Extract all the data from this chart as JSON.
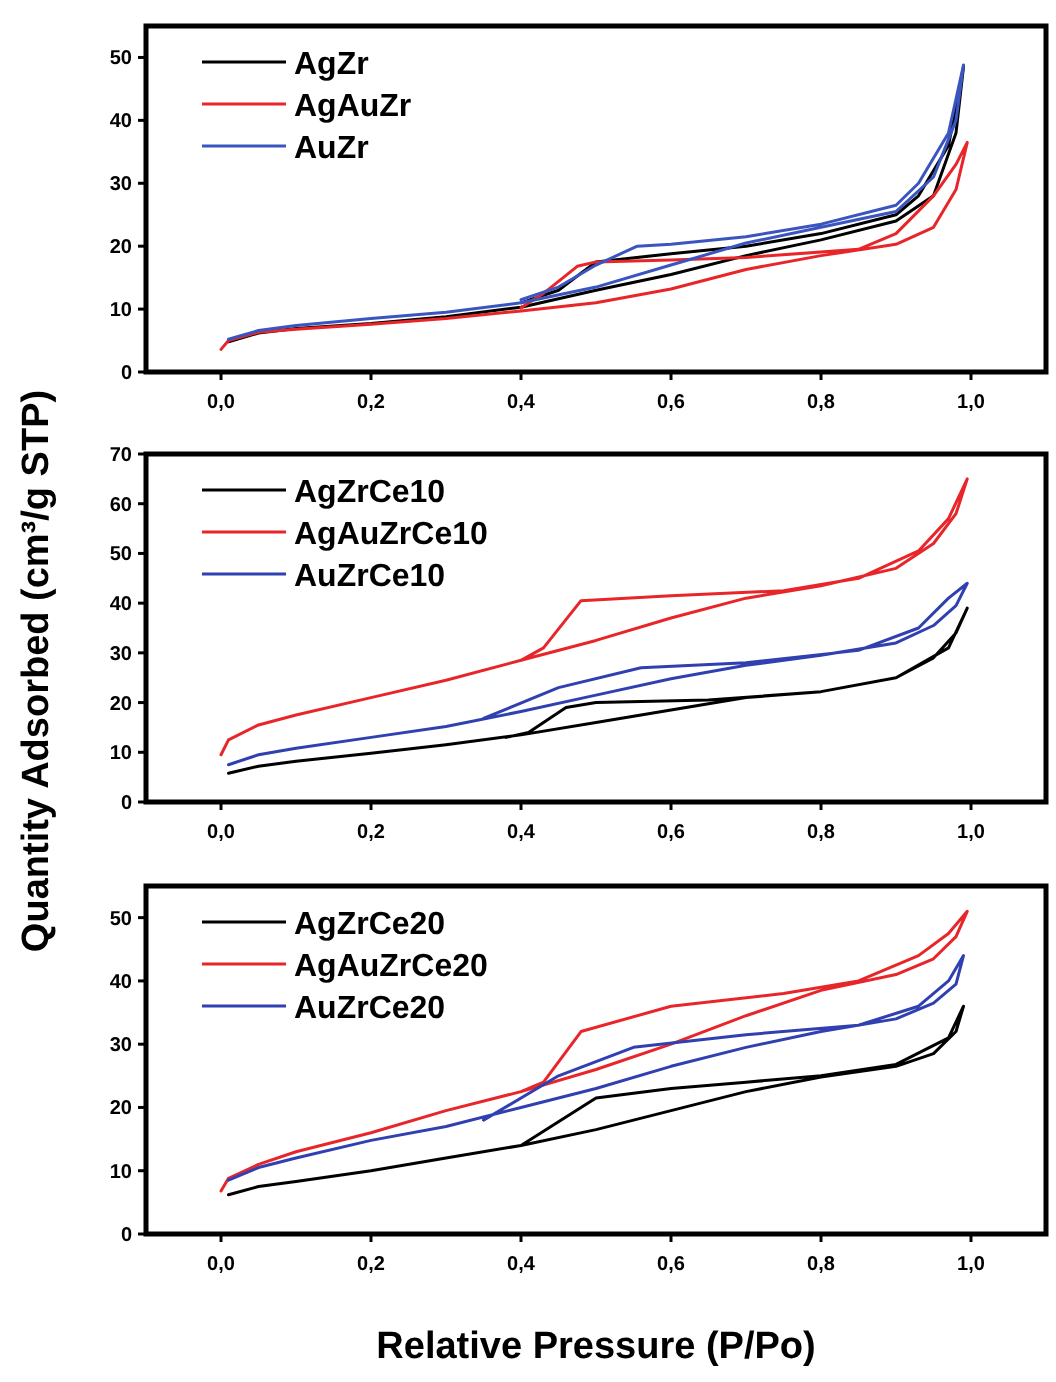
{
  "chart_data": [
    {
      "type": "line",
      "legend": "top left",
      "line_style": "solid",
      "xlim": [
        -0.1,
        1.1
      ],
      "xticks": [
        {
          "value": 0,
          "label": "0,0"
        },
        {
          "value": 0.2,
          "label": "0,2"
        },
        {
          "value": 0.4,
          "label": "0,4"
        },
        {
          "value": 0.6,
          "label": "0,6"
        },
        {
          "value": 0.8,
          "label": "0,8"
        },
        {
          "value": 1,
          "label": "1,0"
        }
      ],
      "ylim": [
        0,
        55
      ],
      "yticks": [
        0,
        10,
        20,
        30,
        40,
        50
      ],
      "series": [
        {
          "name": "AgZr",
          "color": "#000000",
          "x": [
            0.01,
            0.05,
            0.1,
            0.2,
            0.3,
            0.4,
            0.5,
            0.6,
            0.7,
            0.8,
            0.9,
            0.95,
            0.98,
            0.99,
            0.97,
            0.93,
            0.9,
            0.8,
            0.7,
            0.6,
            0.5,
            0.45,
            0.4
          ],
          "values": [
            4.8,
            6.2,
            6.9,
            7.7,
            8.8,
            10.3,
            13,
            15.5,
            18.5,
            21,
            24,
            28,
            38,
            48.5,
            36,
            28,
            25,
            22,
            20,
            18.8,
            17.5,
            13,
            11
          ]
        },
        {
          "name": "AgAuZr",
          "color": "#e8262a",
          "x": [
            0,
            0.01,
            0.05,
            0.1,
            0.2,
            0.3,
            0.4,
            0.5,
            0.6,
            0.7,
            0.8,
            0.9,
            0.95,
            0.98,
            0.995,
            0.98,
            0.95,
            0.9,
            0.85,
            0.7,
            0.6,
            0.5,
            0.475,
            0.43,
            0.4
          ],
          "values": [
            3.6,
            5,
            6.3,
            6.8,
            7.6,
            8.5,
            9.7,
            11,
            13.2,
            16.3,
            18.5,
            20.3,
            23,
            29,
            36.5,
            33,
            28,
            22,
            19.5,
            18.2,
            17.8,
            17.5,
            16.8,
            12.5,
            10.2
          ]
        },
        {
          "name": "AuZr",
          "color": "#3a55c0",
          "x": [
            0.01,
            0.05,
            0.1,
            0.2,
            0.3,
            0.4,
            0.5,
            0.6,
            0.7,
            0.8,
            0.9,
            0.95,
            0.98,
            0.99,
            0.97,
            0.93,
            0.9,
            0.8,
            0.7,
            0.6,
            0.555,
            0.5,
            0.45,
            0.4
          ],
          "values": [
            5.2,
            6.6,
            7.4,
            8.5,
            9.5,
            11,
            13.5,
            17,
            20.5,
            23,
            25.5,
            31,
            40,
            48.8,
            38,
            30,
            26.5,
            23.5,
            21.5,
            20.3,
            20,
            17,
            13.5,
            11.5
          ]
        }
      ]
    },
    {
      "type": "line",
      "legend": "top left",
      "line_style": "solid",
      "ylabel": "Quantity Adsorbed (cm³/g STP)",
      "xlim": [
        -0.1,
        1.1
      ],
      "xticks": [
        {
          "value": 0,
          "label": "0,0"
        },
        {
          "value": 0.2,
          "label": "0,2"
        },
        {
          "value": 0.4,
          "label": "0,4"
        },
        {
          "value": 0.6,
          "label": "0,6"
        },
        {
          "value": 0.8,
          "label": "0,8"
        },
        {
          "value": 1,
          "label": "1,0"
        }
      ],
      "ylim": [
        0,
        70
      ],
      "yticks": [
        0,
        10,
        20,
        30,
        40,
        50,
        60,
        70
      ],
      "series": [
        {
          "name": "AgZrCe10",
          "color": "#000000",
          "x": [
            0.01,
            0.05,
            0.1,
            0.2,
            0.3,
            0.4,
            0.5,
            0.6,
            0.7,
            0.8,
            0.9,
            0.95,
            0.98,
            0.995,
            0.97,
            0.9,
            0.8,
            0.65,
            0.5,
            0.46,
            0.41,
            0.38
          ],
          "values": [
            5.8,
            7.2,
            8.2,
            9.8,
            11.5,
            13.5,
            16,
            18.5,
            21,
            22.2,
            25,
            29,
            34,
            39,
            31,
            25,
            22.2,
            20.5,
            20,
            19,
            14,
            13
          ]
        },
        {
          "name": "AgAuZrCe10",
          "color": "#e8262a",
          "x": [
            0,
            0.01,
            0.05,
            0.1,
            0.2,
            0.3,
            0.4,
            0.5,
            0.6,
            0.7,
            0.8,
            0.9,
            0.95,
            0.98,
            0.995,
            0.97,
            0.93,
            0.85,
            0.75,
            0.6,
            0.48,
            0.43,
            0.4
          ],
          "values": [
            9.5,
            12.5,
            15.5,
            17.5,
            21,
            24.5,
            28.5,
            32.5,
            37,
            41,
            43.5,
            47,
            52,
            58,
            65,
            57,
            50.5,
            45,
            42.5,
            41.5,
            40.5,
            31,
            28.5
          ]
        },
        {
          "name": "AuZrCe10",
          "color": "#3040b0",
          "x": [
            0.01,
            0.05,
            0.1,
            0.2,
            0.3,
            0.4,
            0.5,
            0.6,
            0.7,
            0.8,
            0.9,
            0.95,
            0.98,
            0.995,
            0.97,
            0.93,
            0.85,
            0.7,
            0.56,
            0.45,
            0.35
          ],
          "values": [
            7.5,
            9.5,
            10.8,
            13,
            15.2,
            18.2,
            21.5,
            24.8,
            27.5,
            29.5,
            32,
            35.5,
            39.5,
            44,
            41,
            35,
            30.5,
            28,
            27,
            23,
            16.8
          ]
        }
      ]
    },
    {
      "type": "line",
      "legend": "top left",
      "line_style": "solid",
      "xlabel": "Relative Pressure (P/Po)",
      "xlim": [
        -0.1,
        1.1
      ],
      "xticks": [
        {
          "value": 0,
          "label": "0,0"
        },
        {
          "value": 0.2,
          "label": "0,2"
        },
        {
          "value": 0.4,
          "label": "0,4"
        },
        {
          "value": 0.6,
          "label": "0,6"
        },
        {
          "value": 0.8,
          "label": "0,8"
        },
        {
          "value": 1,
          "label": "1,0"
        }
      ],
      "ylim": [
        0,
        55
      ],
      "yticks": [
        0,
        10,
        20,
        30,
        40,
        50
      ],
      "series": [
        {
          "name": "AgZrCe20",
          "color": "#000000",
          "x": [
            0.01,
            0.05,
            0.1,
            0.2,
            0.3,
            0.4,
            0.5,
            0.6,
            0.7,
            0.8,
            0.9,
            0.95,
            0.98,
            0.99,
            0.97,
            0.9,
            0.8,
            0.7,
            0.6,
            0.5,
            0.4
          ],
          "values": [
            6.2,
            7.5,
            8.3,
            10,
            12,
            14,
            16.5,
            19.5,
            22.5,
            24.8,
            26.5,
            28.5,
            32,
            36,
            31,
            26.8,
            25,
            24,
            23,
            21.5,
            14
          ]
        },
        {
          "name": "AgAuZrCe20",
          "color": "#e8262a",
          "x": [
            0,
            0.01,
            0.05,
            0.1,
            0.2,
            0.3,
            0.4,
            0.5,
            0.6,
            0.7,
            0.8,
            0.9,
            0.95,
            0.98,
            0.995,
            0.97,
            0.93,
            0.85,
            0.75,
            0.6,
            0.48,
            0.43,
            0.4
          ],
          "values": [
            6.8,
            8.8,
            11,
            13,
            16,
            19.5,
            22.5,
            26,
            30,
            34.5,
            38.5,
            41,
            43.5,
            47,
            51,
            47.5,
            44,
            40,
            38,
            36,
            32,
            24,
            22.5
          ]
        },
        {
          "name": "AuZrCe20",
          "color": "#3040b0",
          "x": [
            0.01,
            0.05,
            0.1,
            0.2,
            0.3,
            0.4,
            0.5,
            0.6,
            0.7,
            0.8,
            0.9,
            0.95,
            0.98,
            0.99,
            0.97,
            0.93,
            0.85,
            0.7,
            0.55,
            0.45,
            0.35
          ],
          "values": [
            8.5,
            10.5,
            12,
            14.8,
            17,
            20,
            23,
            26.5,
            29.5,
            32,
            34,
            36.5,
            39.5,
            44,
            40,
            36,
            33,
            31.5,
            29.5,
            25,
            18
          ]
        }
      ]
    }
  ]
}
